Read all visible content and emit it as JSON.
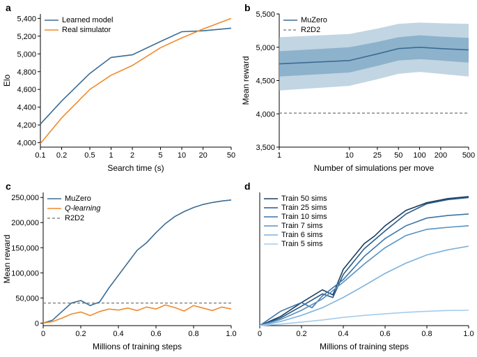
{
  "colors": {
    "muzero": "#3b6c94",
    "real": "#f08a2c",
    "qlearn": "#f08a2c",
    "r2d2": "#888888",
    "band1": "#a8c3d6",
    "band2": "#7ba5c4",
    "axis": "#000000",
    "bg": "#ffffff",
    "sims": [
      "#193d60",
      "#2a5983",
      "#3a74a6",
      "#5692c3",
      "#7cb1dc",
      "#a4cceb"
    ]
  },
  "a": {
    "letter": "a",
    "xlabel": "Search time (s)",
    "ylabel": "Elo",
    "xticks": [
      0.1,
      0.2,
      0.5,
      1,
      2,
      5,
      10,
      20,
      50
    ],
    "xtick_labels": [
      "0.1",
      "0.2",
      "0.5",
      "1",
      "2",
      "5",
      "10",
      "20",
      "50"
    ],
    "yticks": [
      4000,
      4200,
      4400,
      4600,
      4800,
      5000,
      5200,
      5400
    ],
    "ytick_labels": [
      "4,000",
      "4,200",
      "4,400",
      "4,600",
      "4,800",
      "5,000",
      "5,200",
      "5,400"
    ],
    "xlim": [
      0.1,
      50
    ],
    "ylim": [
      3950,
      5450
    ],
    "xlog": true,
    "legend": [
      {
        "label": "Learned model",
        "color": "muzero"
      },
      {
        "label": "Real simulator",
        "color": "real"
      }
    ],
    "learned": {
      "x": [
        0.1,
        0.2,
        0.5,
        1,
        2,
        5,
        10,
        20,
        50
      ],
      "y": [
        4210,
        4470,
        4780,
        4960,
        4990,
        5140,
        5250,
        5260,
        5290
      ]
    },
    "simulator": {
      "x": [
        0.1,
        0.2,
        0.5,
        1,
        2,
        5,
        10,
        20,
        50
      ],
      "y": [
        3990,
        4280,
        4600,
        4760,
        4870,
        5070,
        5180,
        5280,
        5400
      ]
    }
  },
  "b": {
    "letter": "b",
    "xlabel": "Number of simulations per move",
    "ylabel": "Mean reward",
    "xticks": [
      1,
      10,
      25,
      50,
      100,
      200,
      500
    ],
    "xtick_labels": [
      "1",
      "10",
      "25",
      "50",
      "100",
      "200",
      "500"
    ],
    "yticks": [
      3500,
      4000,
      4500,
      5000,
      5500
    ],
    "ytick_labels": [
      "3,500",
      "4,000",
      "4,500",
      "5,000",
      "5,500"
    ],
    "xlim": [
      1,
      500
    ],
    "ylim": [
      3500,
      5500
    ],
    "xlog": true,
    "legend": [
      {
        "label": "MuZero",
        "color": "muzero",
        "style": "solid"
      },
      {
        "label": "R2D2",
        "color": "r2d2",
        "style": "dash"
      }
    ],
    "mean": {
      "x": [
        1,
        10,
        25,
        50,
        100,
        200,
        500
      ],
      "y": [
        4750,
        4800,
        4900,
        4980,
        5000,
        4980,
        4960
      ]
    },
    "r2d2": 4010,
    "band1_lo": {
      "x": [
        1,
        10,
        25,
        50,
        100,
        200,
        500
      ],
      "y": [
        4350,
        4420,
        4520,
        4600,
        4630,
        4600,
        4560
      ]
    },
    "band1_hi": {
      "x": [
        1,
        10,
        25,
        50,
        100,
        200,
        500
      ],
      "y": [
        5150,
        5200,
        5280,
        5350,
        5370,
        5360,
        5350
      ]
    },
    "band2_lo": {
      "x": [
        1,
        10,
        25,
        50,
        100,
        200,
        500
      ],
      "y": [
        4560,
        4620,
        4720,
        4800,
        4820,
        4800,
        4770
      ]
    },
    "band2_hi": {
      "x": [
        1,
        10,
        25,
        50,
        100,
        200,
        500
      ],
      "y": [
        4940,
        5000,
        5080,
        5150,
        5180,
        5160,
        5140
      ]
    }
  },
  "c": {
    "letter": "c",
    "xlabel": "Millions of training steps",
    "ylabel": "Mean reward",
    "xticks": [
      0,
      0.2,
      0.4,
      0.6,
      0.8,
      1.0
    ],
    "xtick_labels": [
      "0",
      "0.2",
      "0.4",
      "0.6",
      "0.8",
      "1.0"
    ],
    "yticks": [
      0,
      50000,
      100000,
      150000,
      200000,
      250000
    ],
    "ytick_labels": [
      "0",
      "50,000",
      "100,000",
      "150,000",
      "200,000",
      "250,000"
    ],
    "xlim": [
      0,
      1.0
    ],
    "ylim": [
      -5000,
      260000
    ],
    "legend": [
      {
        "label": "MuZero",
        "color": "muzero",
        "style": "solid"
      },
      {
        "label": "Q-learning",
        "color": "qlearn",
        "style": "solid",
        "italic": true
      },
      {
        "label": "R2D2",
        "color": "r2d2",
        "style": "dash"
      }
    ],
    "r2d2": 40000,
    "muzero": {
      "x": [
        0,
        0.05,
        0.1,
        0.15,
        0.2,
        0.25,
        0.3,
        0.35,
        0.4,
        0.45,
        0.5,
        0.55,
        0.6,
        0.65,
        0.7,
        0.75,
        0.8,
        0.85,
        0.9,
        0.95,
        1.0
      ],
      "y": [
        0,
        6000,
        23000,
        40000,
        45000,
        35000,
        42000,
        70000,
        95000,
        120000,
        145000,
        160000,
        180000,
        198000,
        212000,
        222000,
        230000,
        236000,
        240000,
        243000,
        245000
      ]
    },
    "qlearn": {
      "x": [
        0,
        0.05,
        0.1,
        0.15,
        0.2,
        0.25,
        0.3,
        0.35,
        0.4,
        0.45,
        0.5,
        0.55,
        0.6,
        0.65,
        0.7,
        0.75,
        0.8,
        0.85,
        0.9,
        0.95,
        1.0
      ],
      "y": [
        0,
        3000,
        10000,
        18000,
        22000,
        15000,
        23000,
        28000,
        26000,
        30000,
        25000,
        32000,
        28000,
        36000,
        31000,
        24000,
        35000,
        30000,
        25000,
        32000,
        28000
      ]
    }
  },
  "d": {
    "letter": "d",
    "xlabel": "Millions of training steps",
    "xticks": [
      0,
      0.2,
      0.4,
      0.6,
      0.8,
      1.0
    ],
    "xtick_labels": [
      "0",
      "0.2",
      "0.4",
      "0.6",
      "0.8",
      "1.0"
    ],
    "xlim": [
      0,
      1.0
    ],
    "ylim": [
      0,
      260000
    ],
    "legend": [
      {
        "label": "Train 50 sims"
      },
      {
        "label": "Train 25 sims"
      },
      {
        "label": "Train 10 sims"
      },
      {
        "label": "Train 7 sims"
      },
      {
        "label": "Train 6 sims"
      },
      {
        "label": "Train 5 sims"
      }
    ],
    "series": [
      {
        "x": [
          0,
          0.1,
          0.2,
          0.3,
          0.35,
          0.4,
          0.45,
          0.5,
          0.55,
          0.6,
          0.7,
          0.8,
          0.9,
          1.0
        ],
        "y": [
          0,
          18000,
          45000,
          70000,
          60000,
          110000,
          135000,
          160000,
          175000,
          195000,
          225000,
          240000,
          248000,
          252000
        ]
      },
      {
        "x": [
          0,
          0.1,
          0.2,
          0.3,
          0.35,
          0.4,
          0.5,
          0.6,
          0.7,
          0.8,
          0.9,
          1.0
        ],
        "y": [
          0,
          15000,
          38000,
          62000,
          55000,
          100000,
          150000,
          185000,
          218000,
          238000,
          246000,
          250000
        ]
      },
      {
        "x": [
          0,
          0.1,
          0.2,
          0.25,
          0.3,
          0.4,
          0.5,
          0.6,
          0.7,
          0.8,
          0.9,
          1.0
        ],
        "y": [
          0,
          28000,
          45000,
          35000,
          58000,
          90000,
          135000,
          170000,
          195000,
          210000,
          215000,
          218000
        ]
      },
      {
        "x": [
          0,
          0.1,
          0.2,
          0.3,
          0.4,
          0.5,
          0.6,
          0.7,
          0.8,
          0.9,
          1.0
        ],
        "y": [
          0,
          12000,
          30000,
          52000,
          85000,
          120000,
          152000,
          176000,
          188000,
          192000,
          195000
        ]
      },
      {
        "x": [
          0,
          0.1,
          0.2,
          0.3,
          0.4,
          0.5,
          0.6,
          0.7,
          0.8,
          0.9,
          1.0
        ],
        "y": [
          0,
          8000,
          20000,
          35000,
          55000,
          78000,
          102000,
          122000,
          138000,
          148000,
          155000
        ]
      },
      {
        "x": [
          0,
          0.1,
          0.2,
          0.3,
          0.4,
          0.5,
          0.6,
          0.7,
          0.8,
          0.9,
          1.0
        ],
        "y": [
          0,
          3000,
          7000,
          11000,
          16000,
          20000,
          23000,
          26000,
          28000,
          29500,
          30000
        ]
      }
    ]
  }
}
